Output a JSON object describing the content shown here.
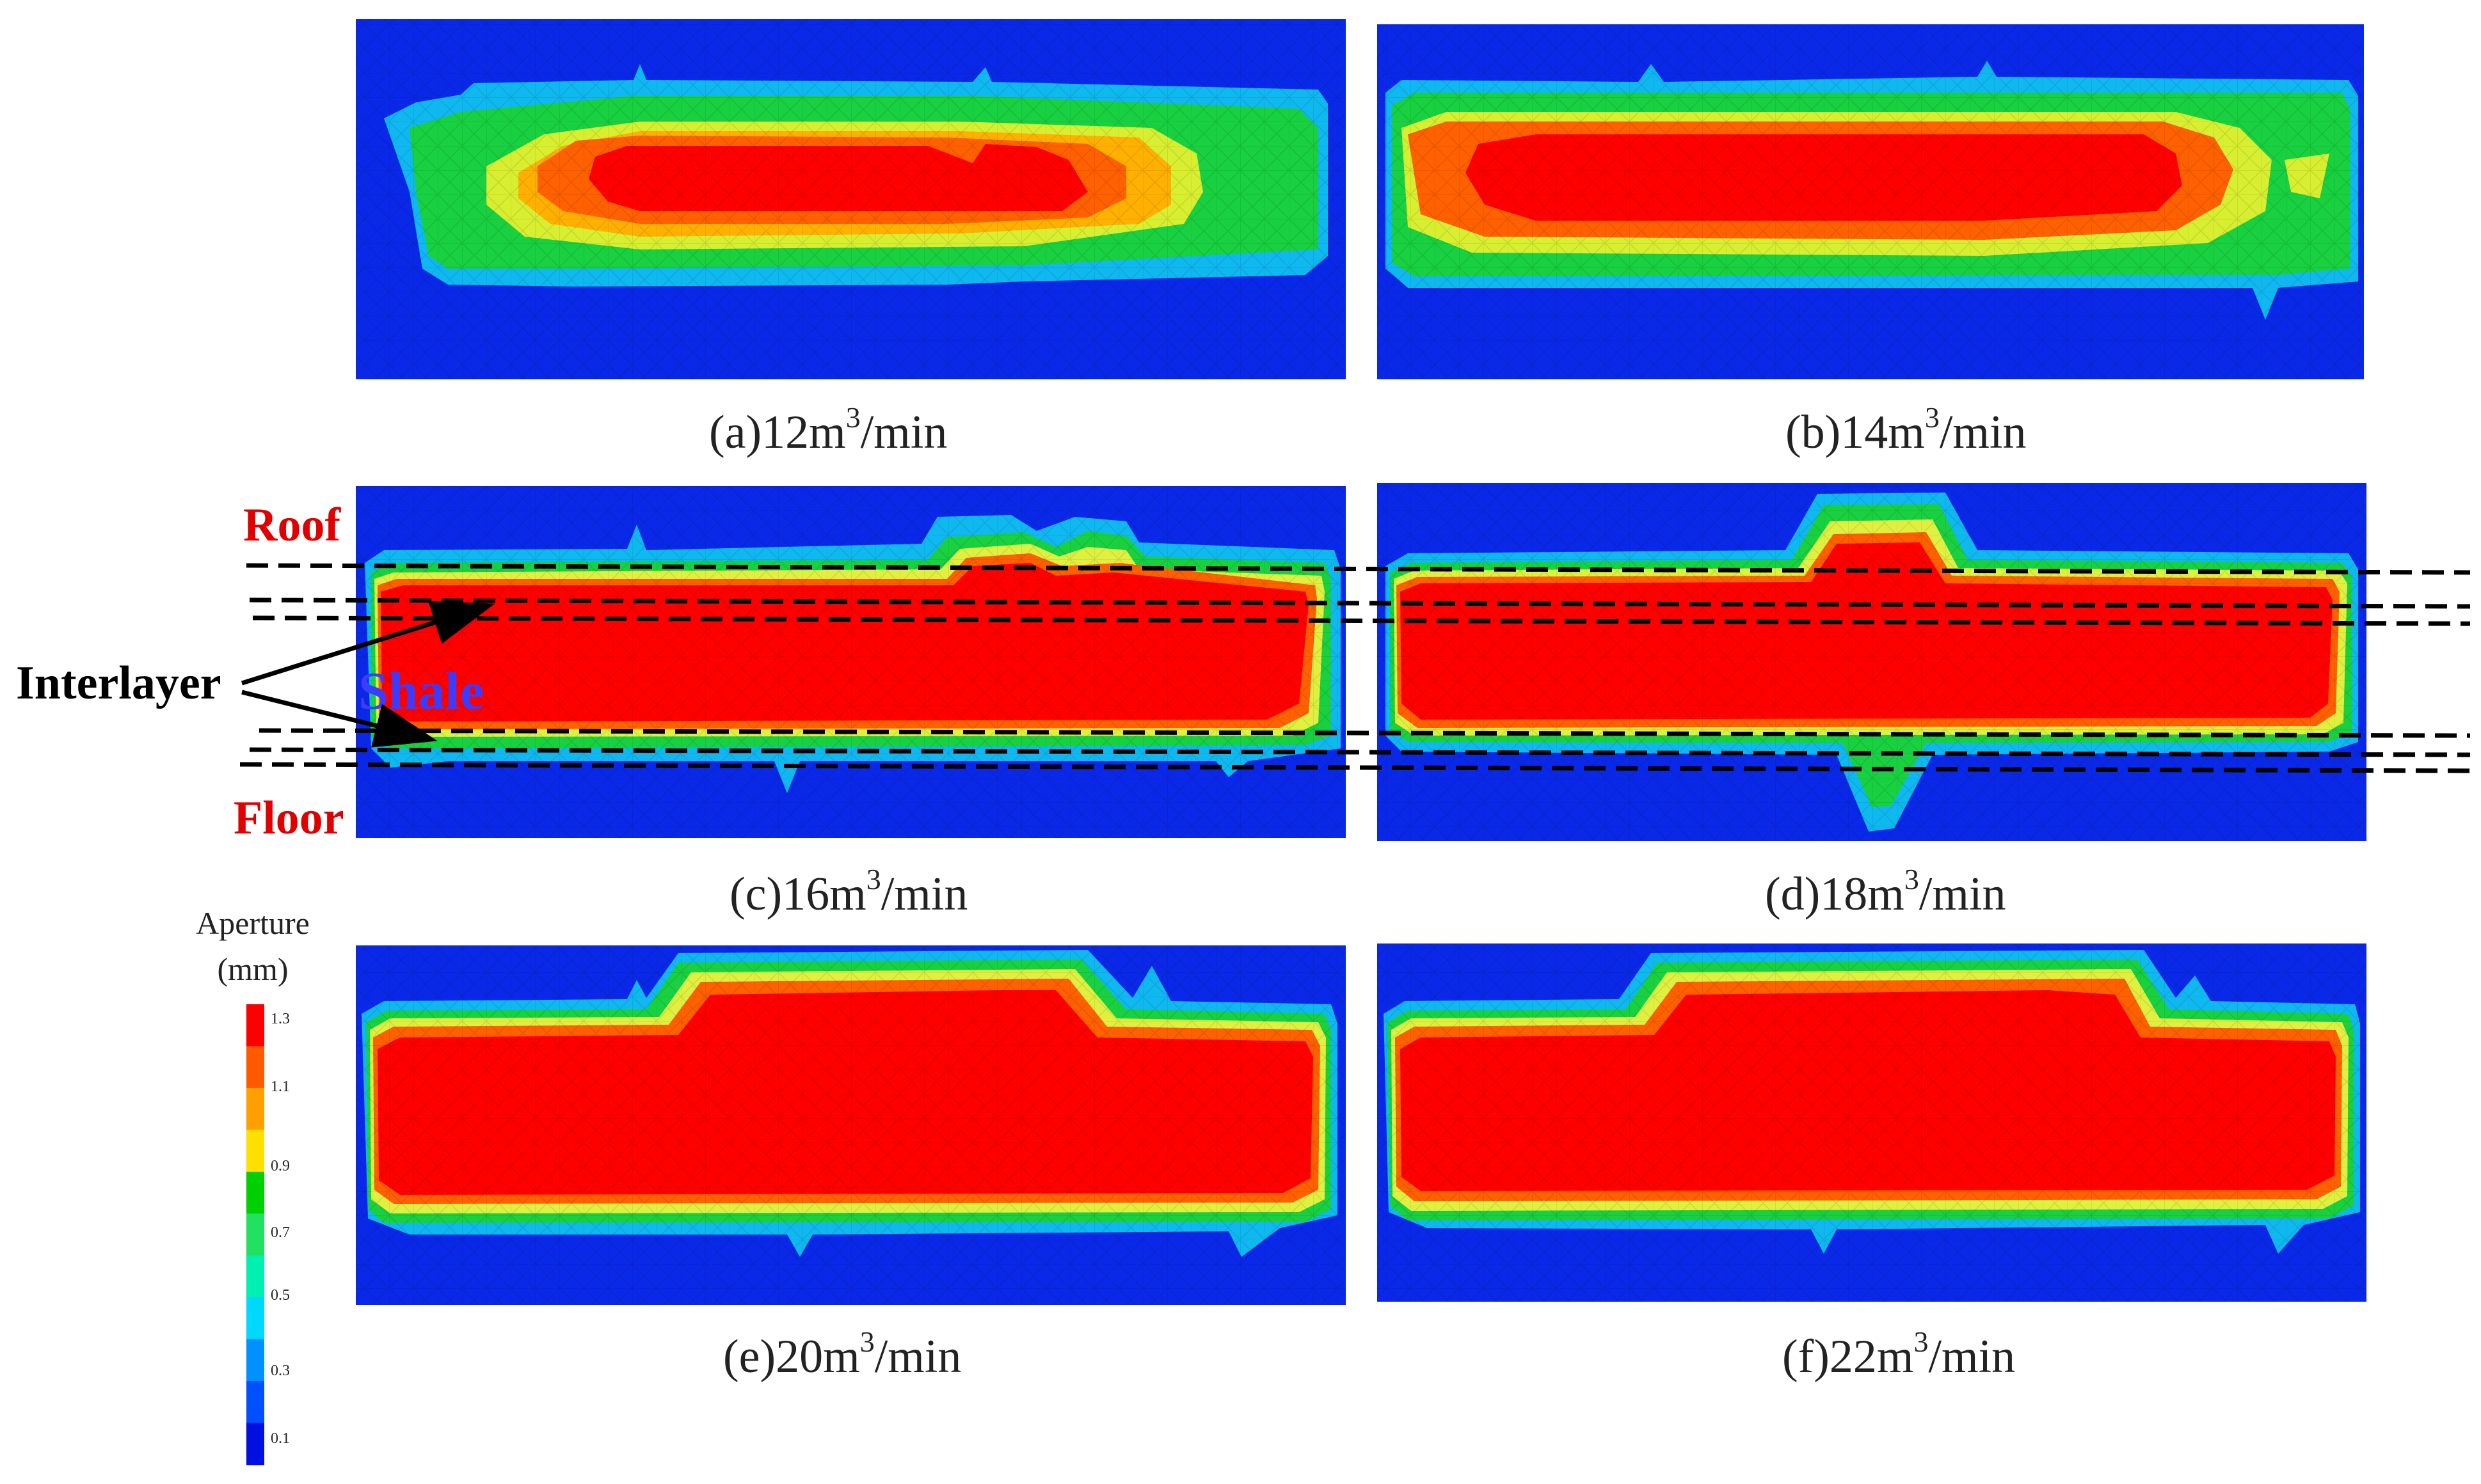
{
  "panels": [
    {
      "id": "a",
      "caption_prefix": "(a)12m",
      "caption_sup": "3",
      "caption_suffix": "/min"
    },
    {
      "id": "b",
      "caption_prefix": "(b)14m",
      "caption_sup": "3",
      "caption_suffix": "/min"
    },
    {
      "id": "c",
      "caption_prefix": "(c)16m",
      "caption_sup": "3",
      "caption_suffix": "/min"
    },
    {
      "id": "d",
      "caption_prefix": "(d)18m",
      "caption_sup": "3",
      "caption_suffix": "/min"
    },
    {
      "id": "e",
      "caption_prefix": "(e)20m",
      "caption_sup": "3",
      "caption_suffix": "/min"
    },
    {
      "id": "f",
      "caption_prefix": "(f)22m",
      "caption_sup": "3",
      "caption_suffix": "/min"
    }
  ],
  "annotations": {
    "roof": "Roof",
    "floor": "Floor",
    "interlayer": "Interlayer",
    "shale": "Shale"
  },
  "legend": {
    "title": "Aperture",
    "unit": "(mm)",
    "ticks": [
      "1.3",
      "1.1",
      "0.9",
      "0.7",
      "0.5",
      "0.3",
      "0.1"
    ],
    "colors": [
      "#ff0000",
      "#ff5a00",
      "#ffa000",
      "#ffe000",
      "#00d000",
      "#22e060",
      "#00f0b0",
      "#00d8ff",
      "#0090ff",
      "#0050ff",
      "#0010e0"
    ]
  },
  "colors": {
    "background_field": "#0a28e8",
    "roof_floor_text": "#e00000",
    "shale_text": "#3c3cff",
    "interlayer_text": "#000000"
  }
}
